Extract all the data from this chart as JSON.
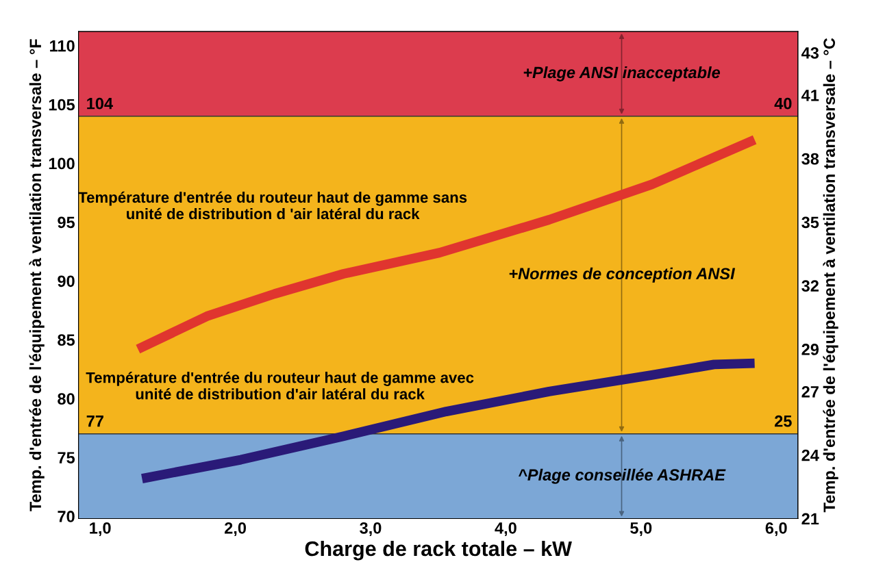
{
  "chart_data": {
    "type": "line",
    "xlabel": "Charge de rack totale – kW",
    "ylabel": "Temp. d'entrée de l'équipement à ventilation transversale – °F",
    "y2label": "Temp. d'entrée de l'équipement à ventilation transversale – °C",
    "xlim": [
      0.84,
      6.16
    ],
    "xticks": [
      {
        "value": 1,
        "label": "1,0"
      },
      {
        "value": 2,
        "label": "2,0"
      },
      {
        "value": 3,
        "label": "3,0"
      },
      {
        "value": 4,
        "label": "4,0"
      },
      {
        "value": 5,
        "label": "5,0"
      },
      {
        "value": 6,
        "label": "6,0"
      }
    ],
    "ylim": [
      69.8,
      111.2
    ],
    "yticks": [
      70,
      75,
      80,
      85,
      90,
      95,
      100,
      105,
      110
    ],
    "y2lim": [
      21,
      44
    ],
    "y2ticks": [
      21,
      24,
      27,
      29,
      32,
      35,
      38,
      41,
      43
    ],
    "series": [
      {
        "name": "Température d'entrée du routeur haut de gamme sans unité de distribution d 'air latéral du rack",
        "color": "#e0352f",
        "x": [
          1.28,
          1.79,
          2.29,
          2.8,
          3.51,
          4.32,
          5.08,
          5.84
        ],
        "values": [
          84.2,
          87.0,
          88.9,
          90.6,
          92.4,
          95.2,
          98.2,
          102.0
        ]
      },
      {
        "name": "Température d'entrée du routeur haut de gamme avec unité de distribution d'air latéral du rack",
        "color": "#2a1a78",
        "x": [
          1.31,
          2.04,
          2.8,
          3.56,
          4.32,
          5.08,
          5.54,
          5.84
        ],
        "values": [
          73.2,
          74.8,
          76.8,
          78.9,
          80.6,
          82.0,
          82.9,
          83.0
        ]
      }
    ],
    "bands": [
      {
        "axis": "y",
        "from": 104,
        "to": 111.2,
        "color": "#dc3c4e"
      },
      {
        "axis": "y",
        "from": 77,
        "to": 104,
        "color": "#f4b41c"
      },
      {
        "axis": "y",
        "from": 69.8,
        "to": 77,
        "color": "#7ca7d6"
      }
    ],
    "ref_lines": [
      {
        "axis": "y",
        "value": 104,
        "label": "104"
      },
      {
        "axis": "y",
        "value": 77,
        "label": "77"
      }
    ],
    "annotations": [
      "+Plage ANSI inacceptable",
      "+Normes de conception ANSI",
      "^Plage conseillée ASHRAE",
      "40",
      "25"
    ],
    "grid": false,
    "legend": false
  }
}
